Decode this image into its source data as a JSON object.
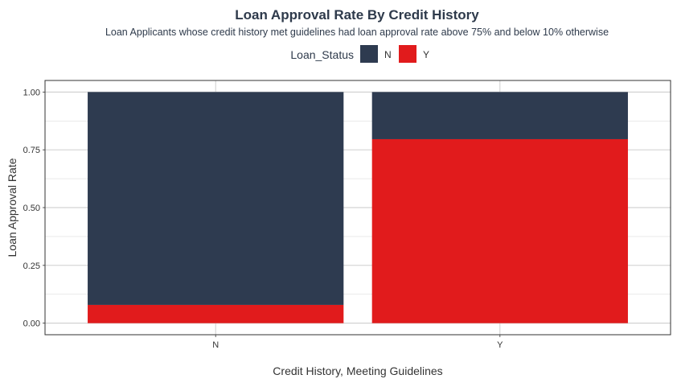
{
  "chart_data": {
    "type": "bar",
    "stacked": true,
    "title": "Loan Approval Rate By Credit History",
    "subtitle": "Loan Applicants whose credit history met guidelines had loan approval rate  above  75% and below 10% otherwise",
    "xlabel": "Credit History, Meeting Guidelines",
    "ylabel": "Loan Approval Rate",
    "categories": [
      "N",
      "Y"
    ],
    "legend": {
      "title": "Loan_Status",
      "placement": "top"
    },
    "series": [
      {
        "name": "N",
        "color": "#2e3b50",
        "values": [
          0.921,
          0.204
        ]
      },
      {
        "name": "Y",
        "color": "#e11b1c",
        "values": [
          0.079,
          0.796
        ]
      }
    ],
    "ylim": [
      0,
      1
    ],
    "yticks": [
      0.0,
      0.25,
      0.5,
      0.75,
      1.0
    ],
    "ytick_labels": [
      "0.00",
      "0.25",
      "0.50",
      "0.75",
      "1.00"
    ],
    "grid": true,
    "panel_border": true
  }
}
